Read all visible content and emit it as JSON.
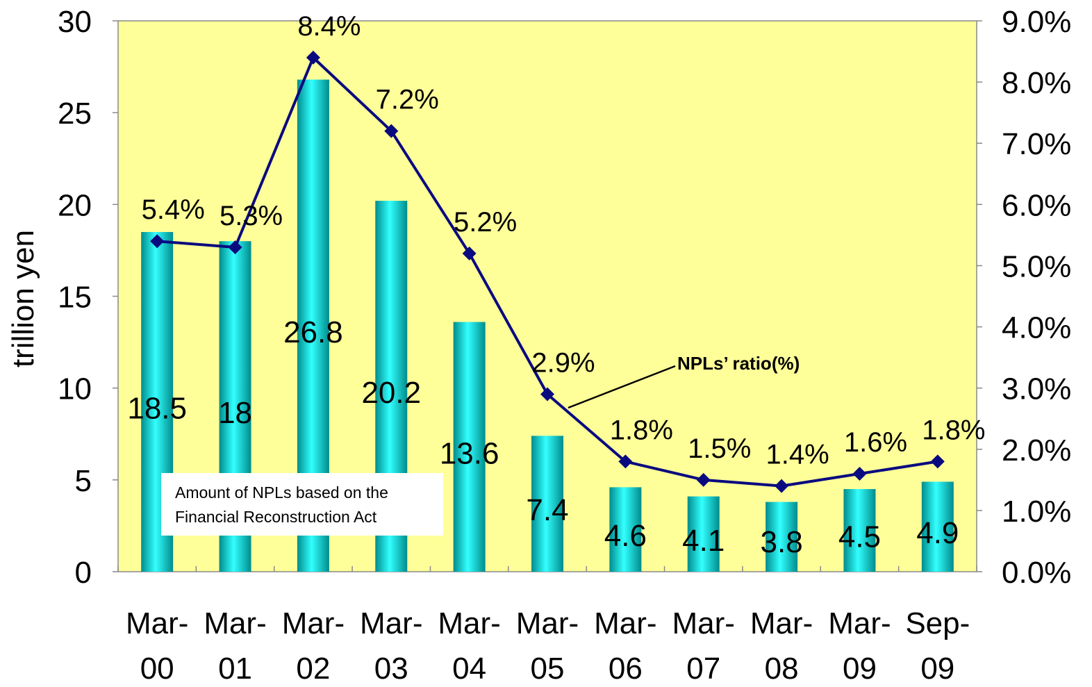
{
  "chart_data": {
    "type": "bar",
    "categories": [
      "Mar-00",
      "Mar-01",
      "Mar-02",
      "Mar-03",
      "Mar-04",
      "Mar-05",
      "Mar-06",
      "Mar-07",
      "Mar-08",
      "Mar-09",
      "Sep-09"
    ],
    "category_lines": [
      [
        "Mar-",
        "00"
      ],
      [
        "Mar-",
        "01"
      ],
      [
        "Mar-",
        "02"
      ],
      [
        "Mar-",
        "03"
      ],
      [
        "Mar-",
        "04"
      ],
      [
        "Mar-",
        "05"
      ],
      [
        "Mar-",
        "06"
      ],
      [
        "Mar-",
        "07"
      ],
      [
        "Mar-",
        "08"
      ],
      [
        "Mar-",
        "09"
      ],
      [
        "Sep-",
        "09"
      ]
    ],
    "series": [
      {
        "name": "Amount of NPLs based on the Financial Reconstruction Act",
        "name_lines": [
          "Amount of NPLs based on the",
          "Financial Reconstruction Act"
        ],
        "type": "bar",
        "axis": "left",
        "values": [
          18.5,
          18,
          26.8,
          20.2,
          13.6,
          7.4,
          4.6,
          4.1,
          3.8,
          4.5,
          4.9
        ],
        "labels": [
          "18.5",
          "18",
          "26.8",
          "20.2",
          "13.6",
          "7.4",
          "4.6",
          "4.1",
          "3.8",
          "4.5",
          "4.9"
        ],
        "color": "#00c8c8"
      },
      {
        "name": "NPLs’ ratio(%)",
        "type": "line",
        "axis": "right",
        "values": [
          5.4,
          5.3,
          8.4,
          7.2,
          5.2,
          2.9,
          1.8,
          1.5,
          1.4,
          1.6,
          1.8
        ],
        "labels": [
          "5.4%",
          "5.3%",
          "8.4%",
          "7.2%",
          "5.2%",
          "2.9%",
          "1.8%",
          "1.5%",
          "1.4%",
          "1.6%",
          "1.8%"
        ],
        "color": "#0a0a80"
      }
    ],
    "ylabel": "trillion yen",
    "ylim": [
      0,
      30
    ],
    "yticks": [
      0,
      5,
      10,
      15,
      20,
      25,
      30
    ],
    "y2lim": [
      0,
      9
    ],
    "y2ticks": [
      "0.0%",
      "1.0%",
      "2.0%",
      "3.0%",
      "4.0%",
      "5.0%",
      "6.0%",
      "7.0%",
      "8.0%",
      "9.0%"
    ],
    "plot_background": "#ffff99",
    "grid": false
  }
}
